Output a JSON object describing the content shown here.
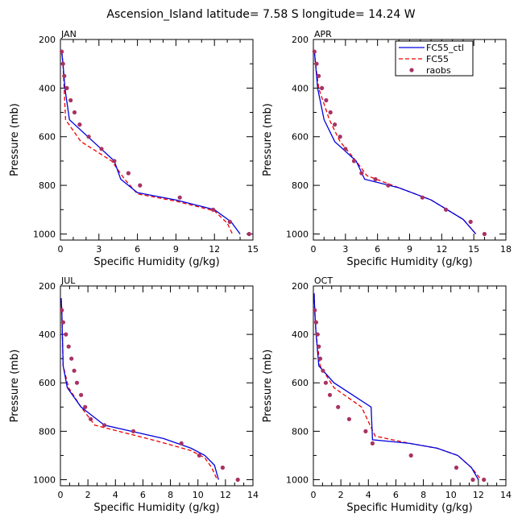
{
  "title": "Ascension_Island  latitude= 7.58 S longitude= 14.24 W",
  "colors": {
    "ctl": "#0000e0",
    "fc55": "#ee0000",
    "raobs": "#a83263"
  },
  "legend": {
    "ctl": "FC55_ctl",
    "fc55": "FC55",
    "raobs": "raobs"
  },
  "chart_data": [
    {
      "type": "line",
      "title": "JAN",
      "xlabel": "Specific Humidity (g/kg)",
      "ylabel": "Pressure (mb)",
      "xlim": [
        0,
        15
      ],
      "ylim": [
        200,
        1025
      ],
      "xticks": [
        0,
        3,
        6,
        9,
        12,
        15
      ],
      "yticks": [
        200,
        400,
        600,
        800,
        1000
      ],
      "series": [
        {
          "name": "FC55_ctl",
          "x": [
            0.1,
            0.2,
            0.35,
            0.7,
            4.2,
            4.7,
            6.0,
            9.0,
            12.0,
            13.3,
            14.0
          ],
          "y": [
            250,
            300,
            400,
            530,
            700,
            775,
            830,
            860,
            900,
            950,
            1000
          ]
        },
        {
          "name": "FC55",
          "x": [
            0.1,
            0.2,
            0.4,
            1.6,
            4.0,
            5.0,
            6.0,
            9.0,
            12.0,
            13.0,
            13.4
          ],
          "y": [
            250,
            300,
            530,
            620,
            700,
            775,
            835,
            865,
            905,
            955,
            1000
          ]
        },
        {
          "name": "raobs",
          "x": [
            0.1,
            0.2,
            0.3,
            0.5,
            0.8,
            1.1,
            1.5,
            2.2,
            3.2,
            4.2,
            5.3,
            6.2,
            9.3,
            11.9,
            13.2,
            14.7
          ],
          "y": [
            250,
            300,
            350,
            400,
            450,
            500,
            550,
            600,
            650,
            700,
            750,
            800,
            850,
            900,
            950,
            1000
          ]
        }
      ]
    },
    {
      "type": "line",
      "title": "APR",
      "xlabel": "Specific Humidity (g/kg)",
      "ylabel": "Pressure (mb)",
      "xlim": [
        0,
        18
      ],
      "ylim": [
        200,
        1025
      ],
      "xticks": [
        0,
        3,
        6,
        9,
        12,
        15,
        18
      ],
      "yticks": [
        200,
        400,
        600,
        800,
        1000
      ],
      "series": [
        {
          "name": "FC55_ctl",
          "x": [
            0.1,
            0.2,
            0.4,
            1.0,
            2.0,
            4.0,
            4.8,
            8.0,
            11.0,
            14.0,
            15.2
          ],
          "y": [
            250,
            300,
            400,
            530,
            620,
            700,
            775,
            810,
            860,
            940,
            1000
          ]
        },
        {
          "name": "FC55",
          "x": [
            0.1,
            0.2,
            0.5,
            1.5,
            2.5,
            4.0,
            5.0,
            8.0,
            11.0,
            14.0,
            15.2
          ],
          "y": [
            250,
            300,
            400,
            530,
            620,
            700,
            760,
            810,
            860,
            940,
            1000
          ]
        },
        {
          "name": "raobs",
          "x": [
            0.1,
            0.3,
            0.5,
            0.8,
            1.2,
            1.6,
            2.0,
            2.5,
            3.0,
            3.8,
            4.5,
            5.8,
            7.0,
            10.2,
            12.4,
            14.7,
            16.0
          ],
          "y": [
            250,
            300,
            350,
            400,
            450,
            500,
            550,
            600,
            650,
            700,
            750,
            775,
            800,
            850,
            900,
            950,
            1000
          ]
        }
      ]
    },
    {
      "type": "line",
      "title": "JUL",
      "xlabel": "Specific Humidity (g/kg)",
      "ylabel": "Pressure (mb)",
      "xlim": [
        0,
        14
      ],
      "ylim": [
        200,
        1025
      ],
      "xticks": [
        0,
        2,
        4,
        6,
        8,
        10,
        12,
        14
      ],
      "yticks": [
        200,
        400,
        600,
        800,
        1000
      ],
      "series": [
        {
          "name": "FC55_ctl",
          "x": [
            0.05,
            0.1,
            0.2,
            0.5,
            1.5,
            3.2,
            7.5,
            9.5,
            10.5,
            11.2,
            11.5
          ],
          "y": [
            250,
            300,
            530,
            620,
            700,
            775,
            830,
            870,
            900,
            940,
            1000
          ]
        },
        {
          "name": "FC55",
          "x": [
            0.05,
            0.1,
            0.2,
            0.6,
            1.5,
            2.5,
            7.0,
            9.5,
            10.5,
            11.0,
            11.4
          ],
          "y": [
            250,
            300,
            530,
            620,
            700,
            775,
            840,
            880,
            910,
            950,
            1000
          ]
        },
        {
          "name": "raobs",
          "x": [
            0.1,
            0.2,
            0.4,
            0.6,
            0.8,
            1.0,
            1.2,
            1.5,
            1.8,
            2.2,
            3.2,
            5.3,
            8.8,
            10.1,
            11.8,
            12.9
          ],
          "y": [
            300,
            350,
            400,
            450,
            500,
            550,
            600,
            650,
            700,
            750,
            775,
            800,
            850,
            900,
            950,
            1000
          ]
        }
      ]
    },
    {
      "type": "line",
      "title": "OCT",
      "xlabel": "Specific Humidity (g/kg)",
      "ylabel": "Pressure (mb)",
      "xlim": [
        0,
        14
      ],
      "ylim": [
        200,
        1025
      ],
      "xticks": [
        0,
        2,
        4,
        6,
        8,
        10,
        12,
        14
      ],
      "yticks": [
        200,
        400,
        600,
        800,
        1000
      ],
      "series": [
        {
          "name": "FC55_ctl",
          "x": [
            0.05,
            0.1,
            0.2,
            0.4,
            1.5,
            4.2,
            4.3,
            7.0,
            9.0,
            10.5,
            11.5,
            12.0
          ],
          "y": [
            230,
            300,
            400,
            530,
            600,
            700,
            835,
            850,
            870,
            900,
            950,
            1000
          ]
        },
        {
          "name": "FC55",
          "x": [
            0.05,
            0.1,
            0.2,
            0.5,
            1.5,
            3.5,
            4.5,
            7.0,
            9.0,
            10.5,
            11.5,
            12.2
          ],
          "y": [
            230,
            300,
            400,
            530,
            620,
            700,
            820,
            850,
            870,
            900,
            950,
            1000
          ]
        },
        {
          "name": "raobs",
          "x": [
            0.1,
            0.2,
            0.3,
            0.4,
            0.5,
            0.7,
            0.9,
            1.2,
            1.8,
            2.6,
            3.8,
            4.3,
            7.1,
            10.4,
            11.6,
            12.4
          ],
          "y": [
            300,
            350,
            400,
            450,
            500,
            550,
            600,
            650,
            700,
            750,
            800,
            850,
            900,
            950,
            1000,
            1000
          ]
        }
      ]
    }
  ]
}
